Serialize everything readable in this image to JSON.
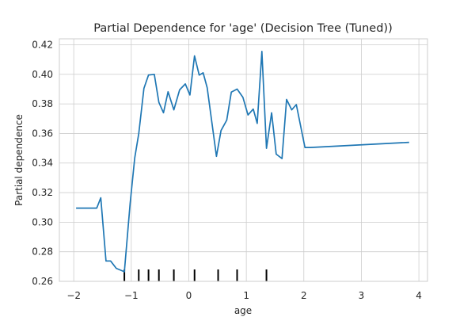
{
  "chart_data": {
    "type": "line",
    "title": "Partial Dependence for 'age' (Decision Tree (Tuned))",
    "xlabel": "age",
    "ylabel": "Partial dependence",
    "xlim": [
      -2.25,
      4.15
    ],
    "ylim": [
      0.26,
      0.424
    ],
    "grid": true,
    "legend": "none",
    "x_ticks": [
      -2,
      -1,
      0,
      1,
      2,
      3,
      4
    ],
    "x_tick_labels": [
      "−2",
      "−1",
      "0",
      "1",
      "2",
      "3",
      "4"
    ],
    "y_ticks": [
      0.26,
      0.28,
      0.3,
      0.32,
      0.34,
      0.36,
      0.38,
      0.4,
      0.42
    ],
    "y_tick_labels": [
      "0.26",
      "0.28",
      "0.30",
      "0.32",
      "0.34",
      "0.36",
      "0.38",
      "0.40",
      "0.42"
    ],
    "series": [
      {
        "color": "#1f77b4",
        "x": [
          -1.96,
          -1.67,
          -1.6,
          -1.53,
          -1.44,
          -1.36,
          -1.26,
          -1.12,
          -1.02,
          -0.94,
          -0.87,
          -0.78,
          -0.7,
          -0.6,
          -0.52,
          -0.44,
          -0.36,
          -0.26,
          -0.16,
          -0.06,
          0.02,
          0.1,
          0.18,
          0.25,
          0.32,
          0.4,
          0.48,
          0.56,
          0.66,
          0.74,
          0.84,
          0.94,
          1.03,
          1.12,
          1.19,
          1.27,
          1.35,
          1.44,
          1.52,
          1.62,
          1.7,
          1.79,
          1.87,
          2.02,
          2.11,
          3.83
        ],
        "y": [
          0.3095,
          0.3095,
          0.3095,
          0.3165,
          0.2738,
          0.2738,
          0.2688,
          0.2665,
          0.3128,
          0.3435,
          0.36,
          0.3905,
          0.3995,
          0.4,
          0.381,
          0.374,
          0.3882,
          0.376,
          0.3895,
          0.3935,
          0.386,
          0.4125,
          0.3995,
          0.401,
          0.391,
          0.368,
          0.3445,
          0.362,
          0.369,
          0.388,
          0.39,
          0.3845,
          0.3725,
          0.3765,
          0.3668,
          0.4155,
          0.35,
          0.374,
          0.346,
          0.343,
          0.383,
          0.376,
          0.3795,
          0.3505,
          0.3505,
          0.354
        ]
      }
    ],
    "rug": [
      -1.12,
      -0.87,
      -0.7,
      -0.52,
      -0.26,
      0.1,
      0.51,
      0.84,
      1.35
    ]
  }
}
